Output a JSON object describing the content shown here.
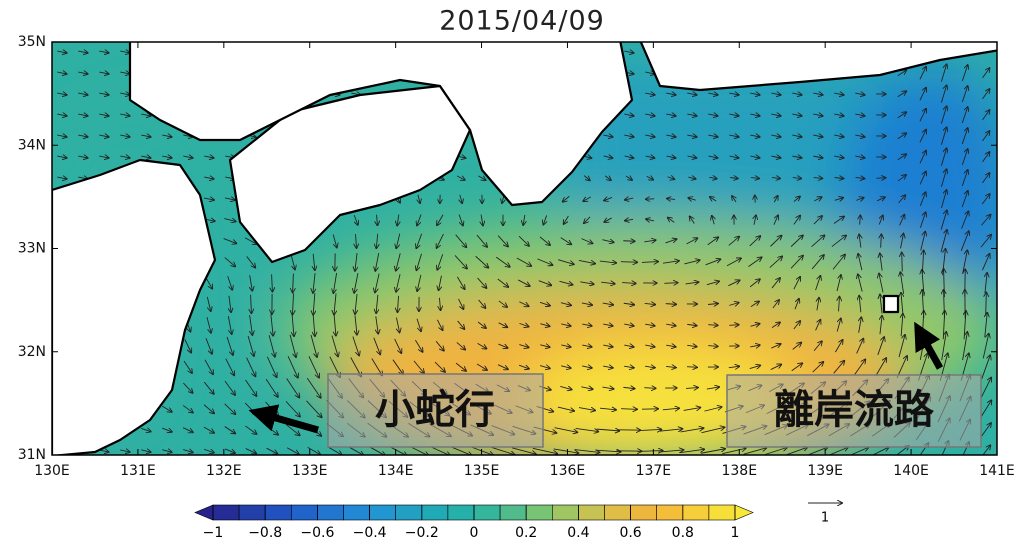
{
  "title": "2015/04/09",
  "lat_labels": [
    "35N",
    "34N",
    "33N",
    "32N",
    "31N"
  ],
  "lon_labels": [
    "130E",
    "131E",
    "132E",
    "133E",
    "134E",
    "135E",
    "136E",
    "137E",
    "138E",
    "139E",
    "140E",
    "141E"
  ],
  "colorbar": {
    "ticks": [
      {
        "value": -1,
        "label": "−1"
      },
      {
        "value": -0.8,
        "label": "−0.8"
      },
      {
        "value": -0.6,
        "label": "−0.6"
      },
      {
        "value": -0.4,
        "label": "−0.4"
      },
      {
        "value": -0.2,
        "label": "−0.2"
      },
      {
        "value": 0,
        "label": "0"
      },
      {
        "value": 0.2,
        "label": "0.2"
      },
      {
        "value": 0.4,
        "label": "0.4"
      },
      {
        "value": 0.6,
        "label": "0.6"
      },
      {
        "value": 0.8,
        "label": "0.8"
      },
      {
        "value": 1,
        "label": "1"
      }
    ]
  },
  "annotations": [
    "小蛇行",
    "離岸流路"
  ],
  "reference_vector": "1"
}
